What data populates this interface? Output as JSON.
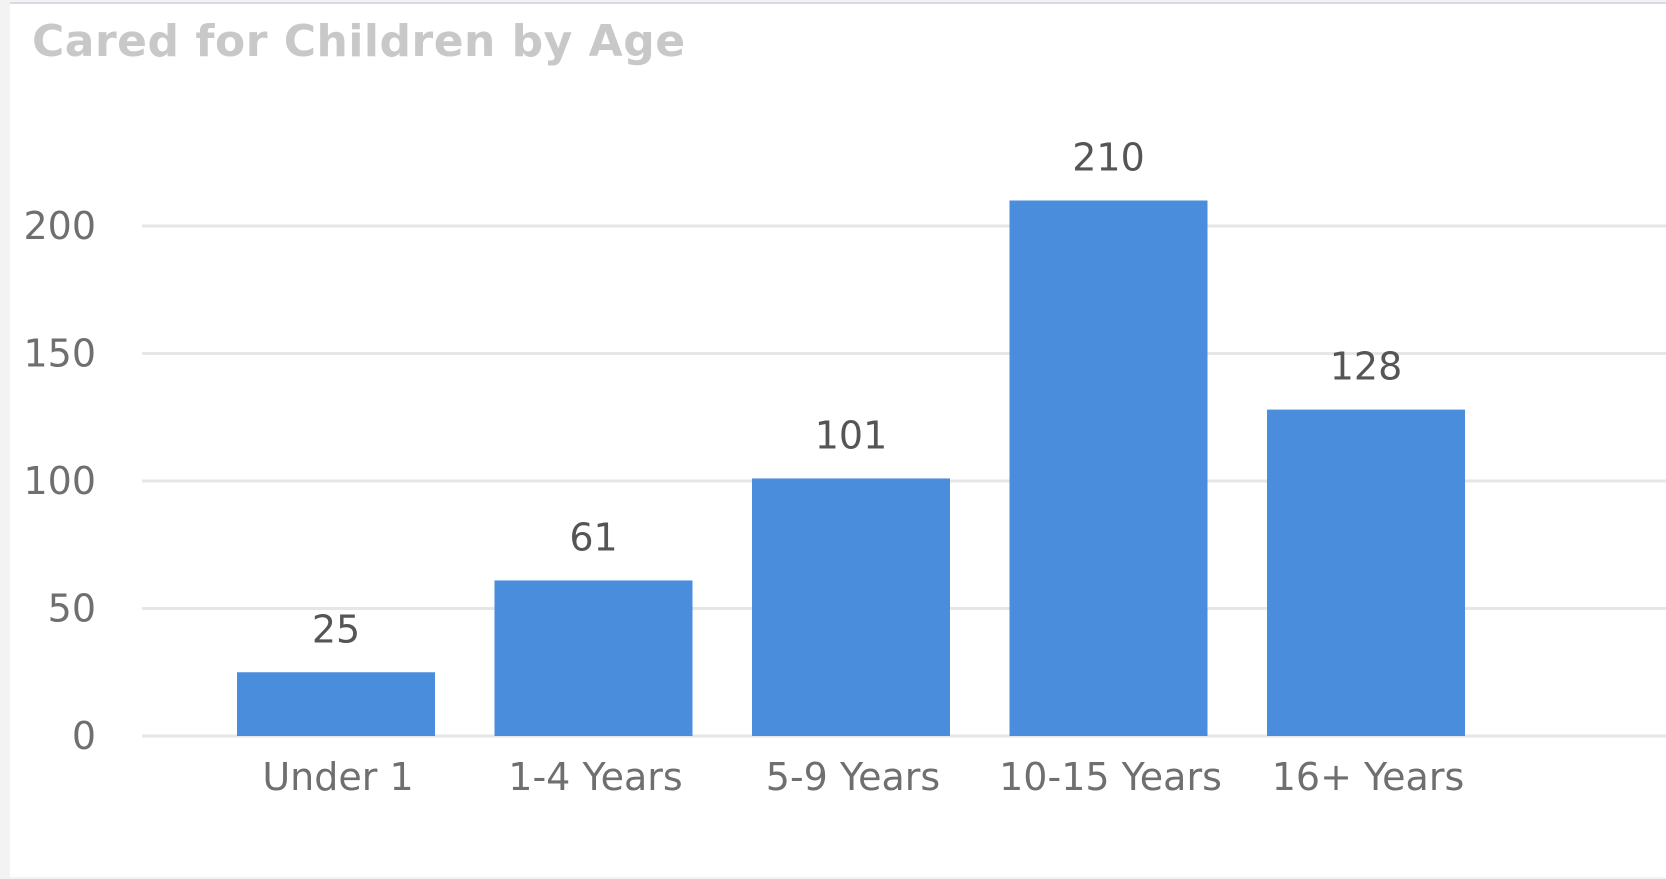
{
  "chart_data": {
    "type": "bar",
    "title": "Cared for Children by Age",
    "categories": [
      "Under 1",
      "1-4 Years",
      "5-9 Years",
      "10-15 Years",
      "16+ Years"
    ],
    "values": [
      25,
      61,
      101,
      210,
      128
    ],
    "y_ticks": [
      "0",
      "50",
      "100",
      "150",
      "200"
    ],
    "ylim": [
      0,
      200
    ],
    "xlabel": "",
    "ylabel": "",
    "grid": true,
    "data_labels": true,
    "bar_color": "#4a8ddc",
    "grid_color": "#e6e6e6",
    "title_color": "#c8c8c8"
  }
}
